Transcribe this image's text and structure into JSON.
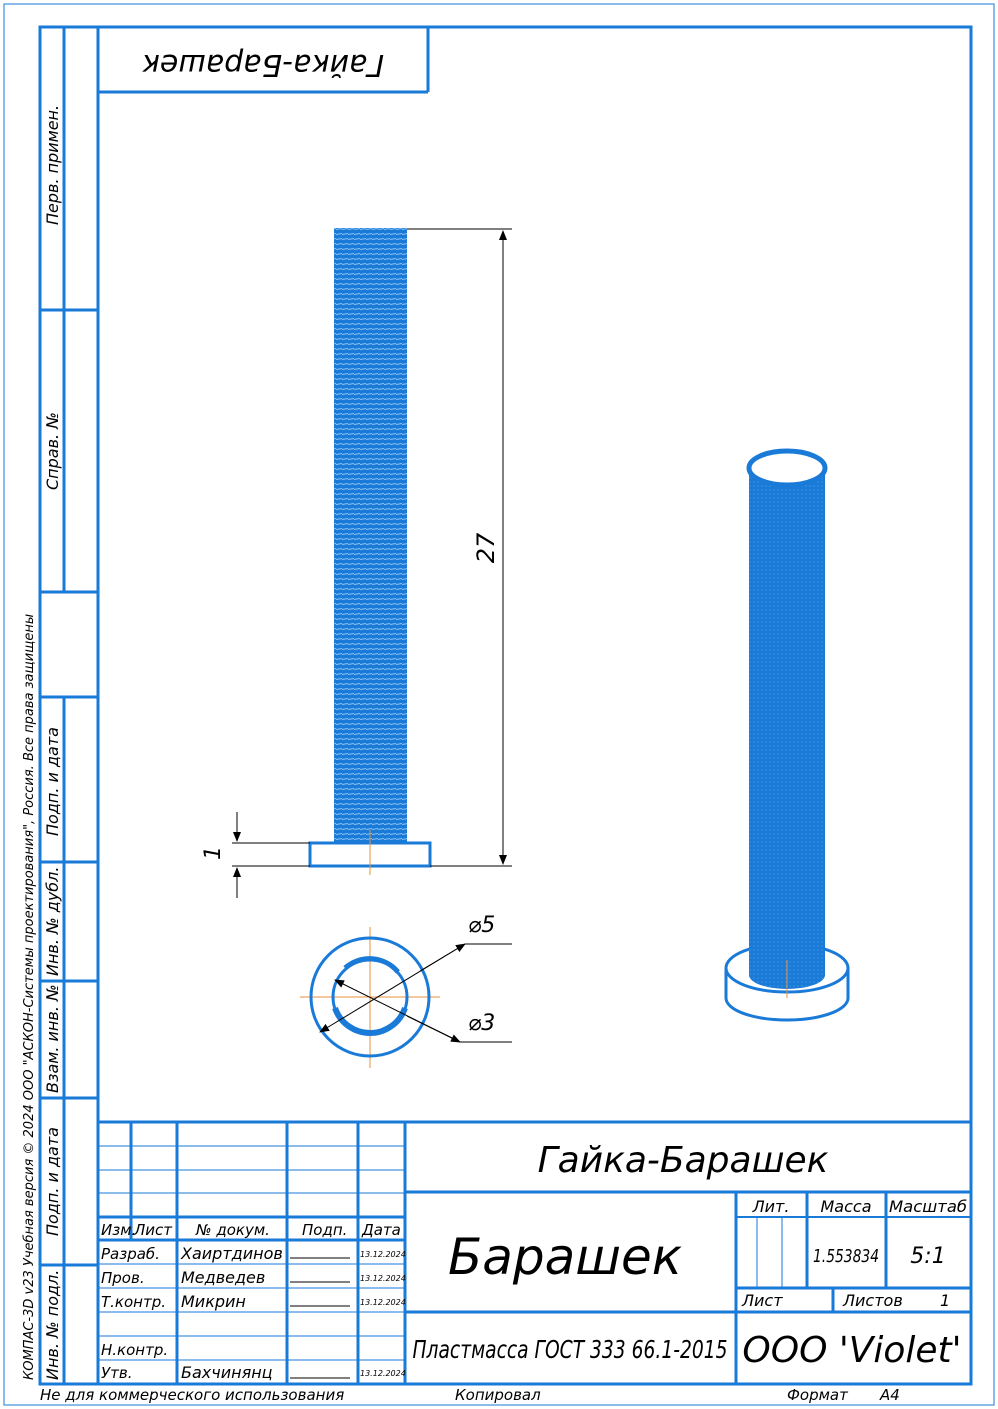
{
  "drawing": {
    "mirrored_label": "Гайка-Барашек",
    "dimensions": {
      "length": "27",
      "flange_thickness": "1",
      "outer_diameter": "⌀5",
      "inner_diameter": "⌀3"
    }
  },
  "side_strip": {
    "perv_primen": "Перв. примен.",
    "sprav_no": "Справ. №",
    "podp_i_data_1": "Подп. и дата",
    "inv_no_dubl": "Инв. № дубл.",
    "vzam_inv_no": "Взам. инв. №",
    "podp_i_data_2": "Подп. и дата",
    "inv_no_podl": "Инв. № подл."
  },
  "copyright": "КОМПАС-3D v23 Учебная версия © 2024 ООО \"АСКОН-Системы проектирования\", Россия. Все права защищены",
  "title_block": {
    "designation": "Гайка-Барашек",
    "part_name": "Барашек",
    "material": "Пластмасса ГОСТ 333 66.1-2015",
    "organization": "ООО 'Violet'",
    "headers": {
      "lit": "Лит.",
      "massa": "Масса",
      "masshtab": "Масштаб",
      "list": "Лист",
      "listov": "Листов"
    },
    "mass_value": "1.553834",
    "scale_value": "5:1",
    "sheets_value": "1",
    "column_headers": {
      "izm": "Изм.",
      "list": "Лист",
      "no_dokum": "№ докум.",
      "podp": "Подп.",
      "data": "Дата"
    },
    "rows": [
      {
        "role": "Разраб.",
        "name": "Хаиртдинов",
        "date": "13.12.2024"
      },
      {
        "role": "Пров.",
        "name": "Медведев",
        "date": "13.12.2024"
      },
      {
        "role": "Т.контр.",
        "name": "Микрин",
        "date": "13.12.2024"
      },
      {
        "role": "Н.контр.",
        "name": "",
        "date": ""
      },
      {
        "role": "Утв.",
        "name": "Бахчинянц",
        "date": "13.12.2024"
      }
    ]
  },
  "footer": {
    "not_commercial": "Не для коммерческого использования",
    "copied": "Копировал",
    "format_label": "Формат",
    "format_value": "А4"
  }
}
